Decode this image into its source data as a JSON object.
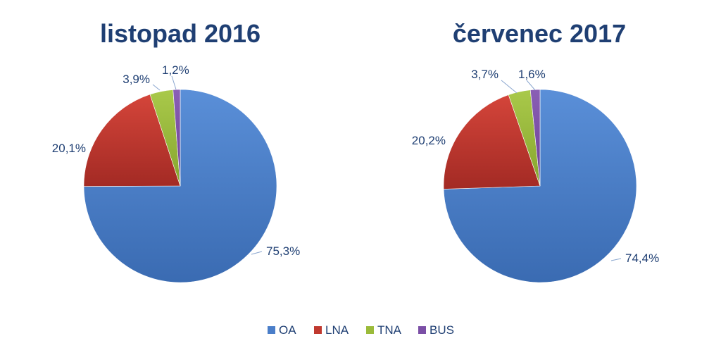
{
  "chart_data": {
    "type": "pie",
    "legend_position": "bottom",
    "categories": [
      "OA",
      "LNA",
      "TNA",
      "BUS"
    ],
    "colors": [
      "#4a7ec9",
      "#c0392f",
      "#9bbb3a",
      "#7b4fa6"
    ],
    "charts": [
      {
        "title": "listopad 2016",
        "values": [
          75.3,
          20.1,
          3.9,
          1.2
        ],
        "labels": [
          "75,3%",
          "20,1%",
          "3,9%",
          "1,2%"
        ]
      },
      {
        "title": "červenec 2017",
        "values": [
          74.4,
          20.2,
          3.7,
          1.6
        ],
        "labels": [
          "74,4%",
          "20,2%",
          "3,7%",
          "1,6%"
        ]
      }
    ]
  }
}
